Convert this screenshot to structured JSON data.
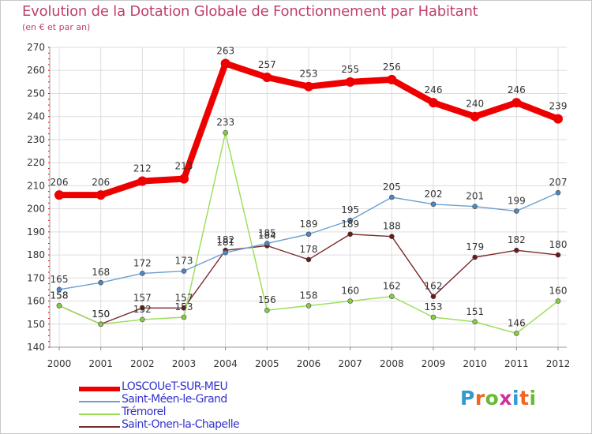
{
  "title": "Evolution de la Dotation Globale de Fonctionnement par Habitant",
  "subtitle": "(en € et par an)",
  "brand": "Proxiti",
  "colors": {
    "title": "#c04070",
    "legend_text": "#3333cc",
    "grid": "#dddddd",
    "axis_ticks": "#cc0000"
  },
  "chart_data": {
    "type": "line",
    "title": "Evolution de la Dotation Globale de Fonctionnement par Habitant",
    "subtitle": "(en € et par an)",
    "xlabel": "",
    "ylabel": "",
    "ylim": [
      140,
      270
    ],
    "yticks": [
      140,
      150,
      160,
      170,
      180,
      190,
      200,
      210,
      220,
      230,
      240,
      250,
      260,
      270
    ],
    "grid": true,
    "legend_position": "bottom-left",
    "categories": [
      "2000",
      "2001",
      "2002",
      "2003",
      "2004",
      "2005",
      "2006",
      "2007",
      "2008",
      "2009",
      "2010",
      "2011",
      "2012"
    ],
    "series": [
      {
        "name": "LOSCOUeT-SUR-MEU",
        "values": [
          206,
          206,
          212,
          213,
          263,
          257,
          253,
          255,
          256,
          246,
          240,
          246,
          239
        ],
        "color": "#ee0000",
        "emphasis": true
      },
      {
        "name": "Saint-Méen-le-Grand",
        "values": [
          165,
          168,
          172,
          173,
          181,
          185,
          189,
          195,
          205,
          202,
          201,
          199,
          207
        ],
        "color": "#6a9fd0",
        "marker": "#4f86c6"
      },
      {
        "name": "Trémorel",
        "values": [
          158,
          150,
          152,
          153,
          233,
          156,
          158,
          160,
          162,
          153,
          151,
          146,
          160
        ],
        "color": "#99dd55",
        "marker": "#88cc44"
      },
      {
        "name": "Saint-Onen-la-Chapelle",
        "values": [
          158,
          150,
          157,
          157,
          182,
          184,
          178,
          189,
          188,
          162,
          179,
          182,
          180
        ],
        "color": "#7a2a2a",
        "marker": "#6a1a1a"
      }
    ]
  }
}
